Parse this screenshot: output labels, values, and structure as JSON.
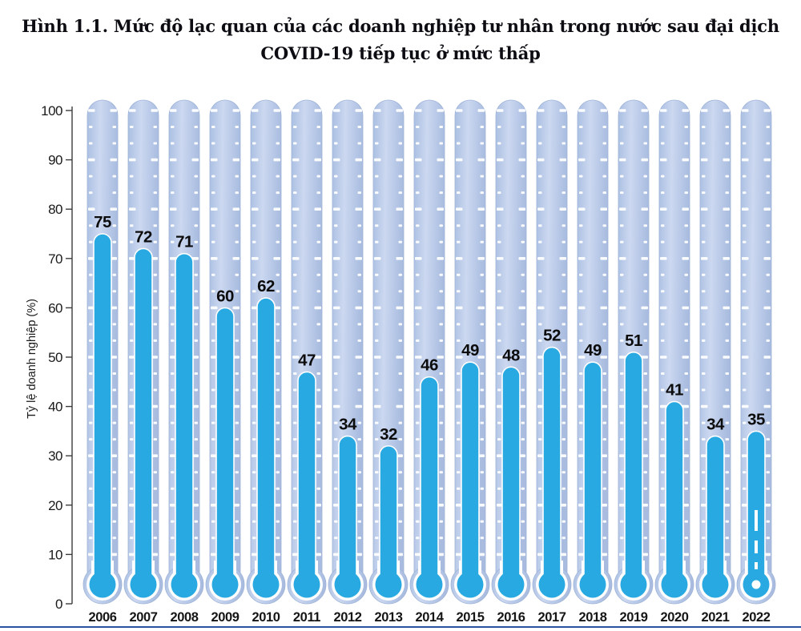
{
  "page": {
    "title_line1": "Hình 1.1. Mức độ lạc quan của các doanh nghiệp tư nhân trong nước sau đại dịch",
    "title_line2": "COVID-19 tiếp tục ở mức thấp"
  },
  "chart_data": {
    "type": "bar",
    "variant": "thermometer-bars",
    "title": "Hình 1.1. Mức độ lạc quan của các doanh nghiệp tư nhân trong nước sau đại dịch COVID-19 tiếp tục ở mức thấp",
    "xlabel": "",
    "ylabel": "Tỷ lệ doanh nghiệp (%)",
    "categories": [
      "2006",
      "2007",
      "2008",
      "2009",
      "2010",
      "2011",
      "2012",
      "2013",
      "2014",
      "2015",
      "2016",
      "2017",
      "2018",
      "2019",
      "2020",
      "2021",
      "2022"
    ],
    "values": [
      75,
      72,
      71,
      60,
      62,
      47,
      34,
      32,
      46,
      49,
      48,
      52,
      49,
      51,
      41,
      34,
      35
    ],
    "ylim": [
      0,
      100
    ],
    "ytick_step": 10,
    "yticks": [
      0,
      10,
      20,
      30,
      40,
      50,
      60,
      70,
      80,
      90,
      100
    ],
    "grid": false,
    "legend": "none",
    "highlight_category": "2022",
    "highlight_style": "white-dashed-mercury-line-and-dot",
    "colors": {
      "fill": "#29a9e1",
      "tube_stop1": "#aabfe2",
      "tube_stop2": "#ccd8f0",
      "tube_stop3": "#b5c6e6",
      "tube_stop4": "#a9bcdf",
      "tube_edge": "#9db3d8",
      "tick_dash": "#ffffff",
      "value_label": "#0c0c0c",
      "year_label": "#151515",
      "axis": "#3c3c3c",
      "axis_label": "#1a1a1a",
      "bottom_rule": "#2a52a0"
    }
  }
}
